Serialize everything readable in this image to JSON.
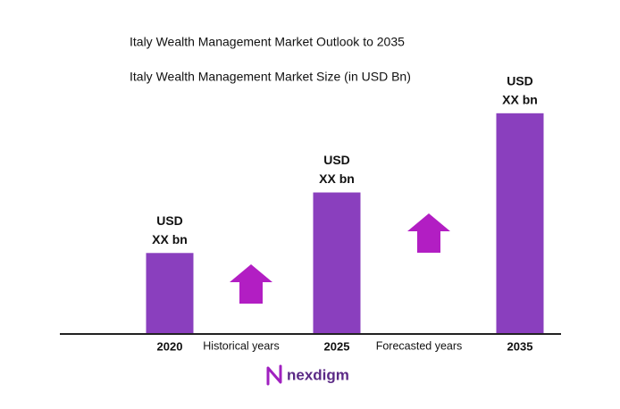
{
  "chart_data": {
    "type": "bar",
    "title": "Italy Wealth Management Market Outlook to 2035",
    "subtitle": "Italy Wealth Management Market Size (in USD Bn)",
    "categories": [
      "2020",
      "2025",
      "2035"
    ],
    "values": [
      90,
      158,
      247
    ],
    "value_labels": [
      [
        "USD",
        "XX bn"
      ],
      [
        "USD",
        "XX bn"
      ],
      [
        "USD",
        "XX bn"
      ]
    ],
    "color": "#8a3fbe",
    "ylim": [
      0,
      300
    ],
    "annotations": [
      "Historical years",
      "Forecasted years"
    ],
    "brand": "nexdigm"
  }
}
